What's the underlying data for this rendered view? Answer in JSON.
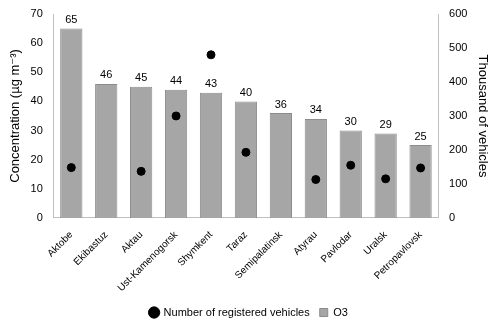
{
  "chart_data": {
    "type": "bar",
    "categories": [
      "Aktobe",
      "Ekibastuz",
      "Aktau",
      "Ust-Kamenogorsk",
      "Shymkent",
      "Taraz",
      "Semipalatinsk",
      "Atyrau",
      "Pavlodar",
      "Uralsk",
      "Petropavlovsk"
    ],
    "series": [
      {
        "name": "O3",
        "type": "bar",
        "color": "#a6a6a6",
        "values": [
          65,
          46,
          45,
          44,
          43,
          40,
          36,
          34,
          30,
          29,
          25
        ]
      },
      {
        "name": "Number of registered vehicles",
        "type": "scatter",
        "marker": "circle",
        "color": "#000000",
        "axis": "y2",
        "values": [
          148,
          null,
          137,
          300,
          480,
          193,
          null,
          113,
          155,
          115,
          147
        ]
      }
    ],
    "y_label": "Concentration (µg m⁻³)",
    "y2_label": "Thousand of vehicles",
    "ylim": [
      0,
      70
    ],
    "yticks": [
      0,
      10,
      20,
      30,
      40,
      50,
      60,
      70
    ],
    "y2lim": [
      0,
      600
    ],
    "y2ticks": [
      0,
      100,
      200,
      300,
      400,
      500,
      600
    ],
    "grid": false,
    "legend": "bottom",
    "data_labels": true
  }
}
